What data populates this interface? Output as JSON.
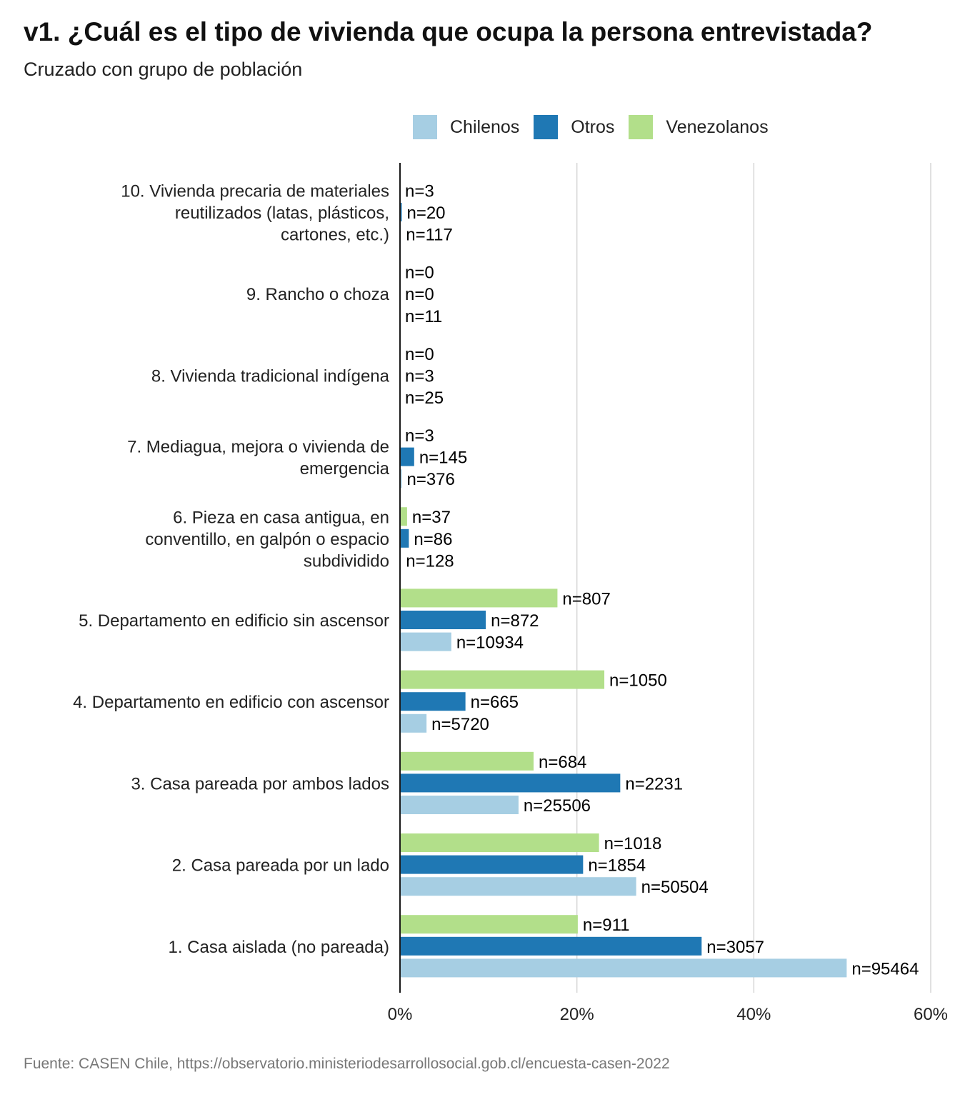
{
  "chart_data": {
    "type": "bar",
    "orientation": "horizontal",
    "title": "v1. ¿Cuál es el tipo de vivienda que ocupa la persona entrevistada?",
    "subtitle": "Cruzado con grupo de población",
    "caption": "Fuente: CASEN Chile, https://observatorio.ministeriodesarrollosocial.gob.cl/encuesta-casen-2022",
    "xlim": [
      0,
      60
    ],
    "xticks": [
      "0%",
      "20%",
      "40%",
      "60%"
    ],
    "xtick_values": [
      0,
      20,
      40,
      60
    ],
    "legend_position": "top",
    "grid": true,
    "categories": [
      {
        "lines": [
          "10. Vivienda precaria de materiales",
          "reutilizados (latas, plásticos,",
          "cartones, etc.)"
        ]
      },
      {
        "lines": [
          "9. Rancho o choza"
        ]
      },
      {
        "lines": [
          "8. Vivienda tradicional indígena"
        ]
      },
      {
        "lines": [
          "7. Mediagua, mejora o vivienda de",
          "emergencia"
        ]
      },
      {
        "lines": [
          "6. Pieza en casa antigua, en",
          "conventillo, en galpón o espacio",
          "subdividido"
        ]
      },
      {
        "lines": [
          "5. Departamento en edificio sin ascensor"
        ]
      },
      {
        "lines": [
          "4. Departamento en edificio con ascensor"
        ]
      },
      {
        "lines": [
          "3. Casa pareada por ambos lados"
        ]
      },
      {
        "lines": [
          "2. Casa pareada por un lado"
        ]
      },
      {
        "lines": [
          "1. Casa aislada (no pareada)"
        ]
      }
    ],
    "series": [
      {
        "name": "Venezolanos",
        "color": "#b2df8a",
        "values": [
          0.0,
          0.0,
          0.0,
          0.0,
          0.8,
          17.8,
          23.1,
          15.1,
          22.5,
          20.1
        ],
        "labels": [
          "n=3",
          "n=0",
          "n=0",
          "n=3",
          "n=37",
          "n=807",
          "n=1050",
          "n=684",
          "n=1018",
          "n=911"
        ]
      },
      {
        "name": "Otros",
        "color": "#1f78b4",
        "values": [
          0.2,
          0.0,
          0.0,
          1.6,
          1.0,
          9.7,
          7.4,
          24.9,
          20.7,
          34.1
        ],
        "labels": [
          "n=20",
          "n=0",
          "n=3",
          "n=145",
          "n=86",
          "n=872",
          "n=665",
          "n=2231",
          "n=1854",
          "n=3057"
        ]
      },
      {
        "name": "Chilenos",
        "color": "#a6cee3",
        "values": [
          0.1,
          0.0,
          0.0,
          0.2,
          0.1,
          5.8,
          3.0,
          13.4,
          26.7,
          50.5
        ],
        "labels": [
          "n=117",
          "n=11",
          "n=25",
          "n=376",
          "n=128",
          "n=10934",
          "n=5720",
          "n=25506",
          "n=50504",
          "n=95464"
        ]
      }
    ]
  },
  "legend": {
    "items": [
      {
        "name": "Chilenos",
        "color": "#a6cee3"
      },
      {
        "name": "Otros",
        "color": "#1f78b4"
      },
      {
        "name": "Venezolanos",
        "color": "#b2df8a"
      }
    ]
  }
}
